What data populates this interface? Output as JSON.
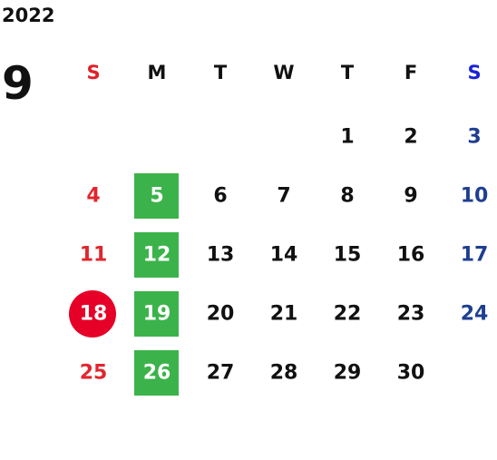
{
  "year": "2022",
  "month": "9",
  "weekdays": [
    "S",
    "M",
    "T",
    "W",
    "T",
    "F",
    "S"
  ],
  "weeks": [
    [
      null,
      null,
      null,
      null,
      1,
      2,
      3
    ],
    [
      4,
      5,
      6,
      7,
      8,
      9,
      10
    ],
    [
      11,
      12,
      13,
      14,
      15,
      16,
      17
    ],
    [
      18,
      19,
      20,
      21,
      22,
      23,
      24
    ],
    [
      25,
      26,
      27,
      28,
      29,
      30,
      null
    ]
  ]
}
